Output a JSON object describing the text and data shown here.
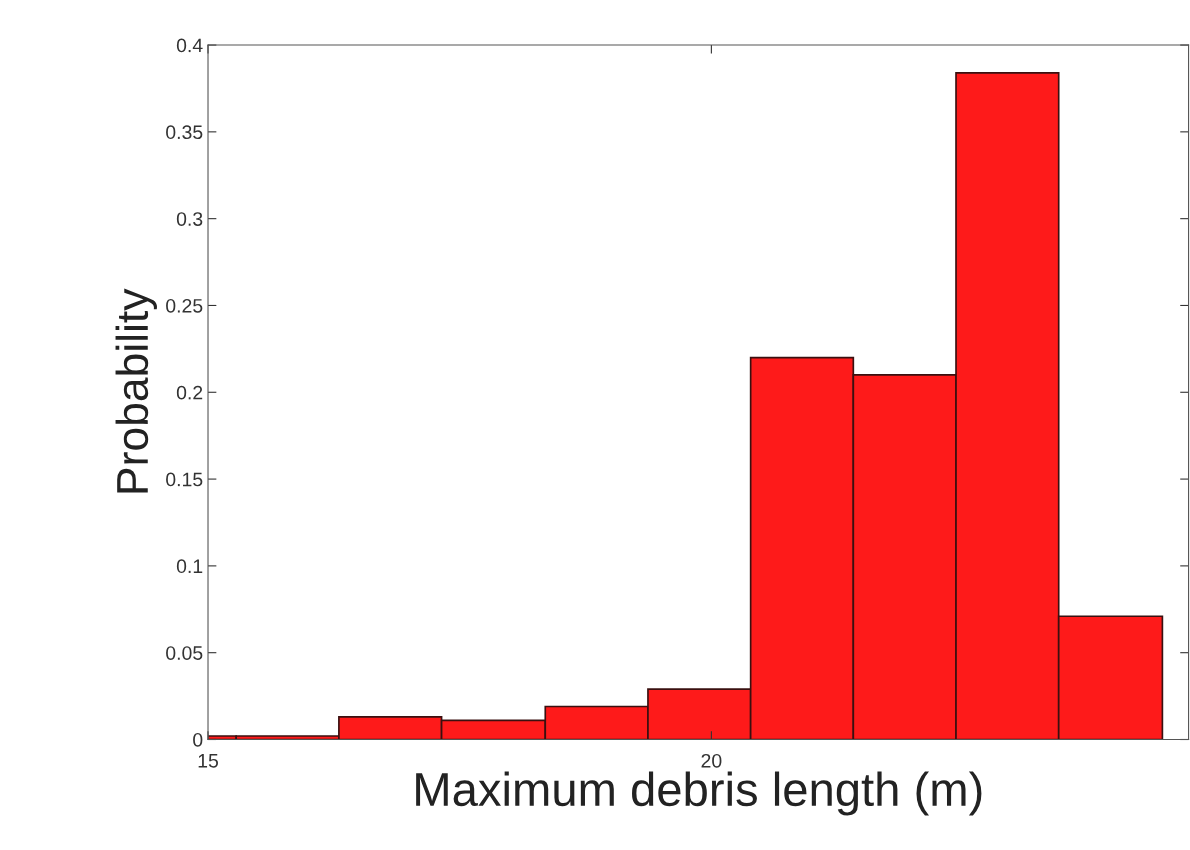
{
  "chart_data": {
    "type": "histogram",
    "xlabel": "Maximum debris length (m)",
    "ylabel": "Probability",
    "bins": [
      14.26,
      15.28,
      16.3,
      17.32,
      18.35,
      19.37,
      20.39,
      21.41,
      22.43,
      23.45,
      24.48
    ],
    "values": [
      0.002,
      0.002,
      0.013,
      0.011,
      0.019,
      0.029,
      0.22,
      0.21,
      0.384,
      0.071
    ],
    "color": "#fe1a1a",
    "xlim": [
      15,
      24.74
    ],
    "xticks": [
      15,
      20
    ],
    "ylim": [
      0,
      0.4
    ],
    "yticks": [
      0,
      0.05,
      0.1,
      0.15,
      0.2,
      0.25,
      0.3,
      0.35,
      0.4
    ],
    "grid": false
  }
}
